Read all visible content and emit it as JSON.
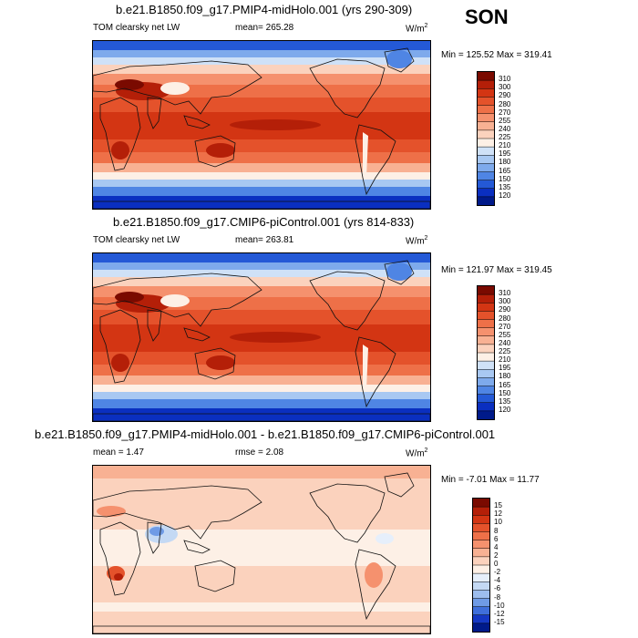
{
  "season": "SON",
  "panels": [
    {
      "title": "b.e21.B1850.f09_g17.PMIP4-midHolo.001 (yrs 290-309)",
      "variable": "TOM clearsky net LW",
      "mean": "mean= 265.28",
      "units": "W/m",
      "units_sup": "2",
      "minmax": "Min = 125.52 Max = 319.41",
      "levels": [
        "310",
        "300",
        "290",
        "280",
        "270",
        "255",
        "240",
        "225",
        "210",
        "195",
        "180",
        "165",
        "150",
        "135",
        "120"
      ],
      "colors": [
        "#7a0a00",
        "#b41f08",
        "#d33513",
        "#e4522b",
        "#ee7048",
        "#f5916e",
        "#f8b193",
        "#fbd2bd",
        "#fdf0e6",
        "#cfe1f7",
        "#a8c8f2",
        "#7eaaec",
        "#4f85e4",
        "#2459d6",
        "#0a2fc0",
        "#001a8a"
      ]
    },
    {
      "title": "b.e21.B1850.f09_g17.CMIP6-piControl.001 (yrs 814-833)",
      "variable": "TOM clearsky net LW",
      "mean": "mean= 263.81",
      "units": "W/m",
      "units_sup": "2",
      "minmax": "Min = 121.97 Max = 319.45",
      "levels": [
        "310",
        "300",
        "290",
        "280",
        "270",
        "255",
        "240",
        "225",
        "210",
        "195",
        "180",
        "165",
        "150",
        "135",
        "120"
      ],
      "colors": [
        "#7a0a00",
        "#b41f08",
        "#d33513",
        "#e4522b",
        "#ee7048",
        "#f5916e",
        "#f8b193",
        "#fbd2bd",
        "#fdf0e6",
        "#cfe1f7",
        "#a8c8f2",
        "#7eaaec",
        "#4f85e4",
        "#2459d6",
        "#0a2fc0",
        "#001a8a"
      ]
    },
    {
      "title": "b.e21.B1850.f09_g17.PMIP4-midHolo.001 - b.e21.B1850.f09_g17.CMIP6-piControl.001",
      "variable": "",
      "mean": "mean =   1.47",
      "rmse": "rmse =   2.08",
      "units": "W/m",
      "units_sup": "2",
      "minmax": "Min =  -7.01 Max =  11.77",
      "levels": [
        "15",
        "12",
        "10",
        "8",
        "6",
        "4",
        "2",
        "0",
        "-2",
        "-4",
        "-6",
        "-8",
        "-10",
        "-12",
        "-15"
      ],
      "colors": [
        "#7a0a00",
        "#b41f08",
        "#d33513",
        "#e4522b",
        "#ee7048",
        "#f5916e",
        "#f8b193",
        "#fbd2bd",
        "#fdf0e6",
        "#e6effb",
        "#c4d9f4",
        "#9dbdee",
        "#6f9be6",
        "#3f6fdb",
        "#1538c4",
        "#001a8a"
      ]
    }
  ]
}
